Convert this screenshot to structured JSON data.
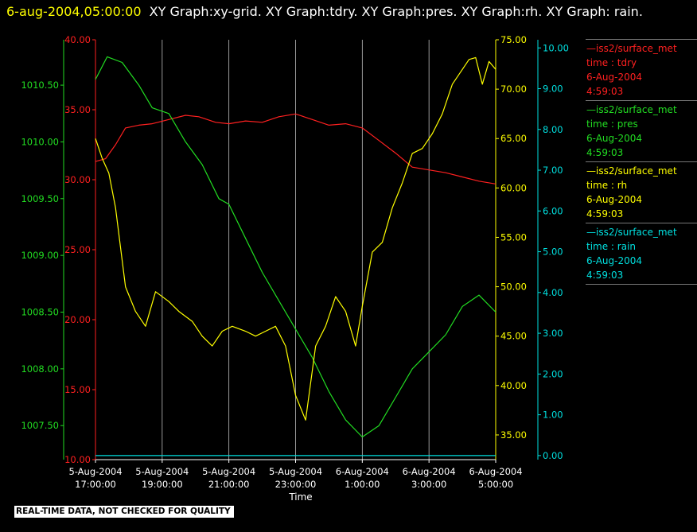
{
  "header": {
    "timestamp": "6-aug-2004,05:00:00",
    "graphs": "XY Graph:xy-grid.  XY Graph:tdry.  XY Graph:pres.  XY Graph:rh.  XY Graph: rain."
  },
  "footer": {
    "text": "REAL-TIME DATA, NOT CHECKED FOR QUALITY"
  },
  "colors": {
    "tdry": "#ff2020",
    "pres": "#22dd22",
    "rh": "#ffff00",
    "rain": "#00e0e0",
    "grid": "#ffffff",
    "background": "#000000"
  },
  "legend": [
    {
      "name": "—iss2/surface_met",
      "var": "time : tdry",
      "date": "6-Aug-2004",
      "time": "4:59:03",
      "color": "#ff2020"
    },
    {
      "name": "—iss2/surface_met",
      "var": "time : pres",
      "date": "6-Aug-2004",
      "time": "4:59:03",
      "color": "#22dd22"
    },
    {
      "name": "—iss2/surface_met",
      "var": "time : rh",
      "date": "6-Aug-2004",
      "time": "4:59:03",
      "color": "#ffff00"
    },
    {
      "name": "—iss2/surface_met",
      "var": "time : rain",
      "date": "6-Aug-2004",
      "time": "4:59:03",
      "color": "#00e0e0"
    }
  ],
  "chart_data": {
    "type": "line",
    "xlabel": "Time",
    "x_ticks": [
      {
        "x": 17,
        "line1": "5-Aug-2004",
        "line2": "17:00:00"
      },
      {
        "x": 19,
        "line1": "5-Aug-2004",
        "line2": "19:00:00"
      },
      {
        "x": 21,
        "line1": "5-Aug-2004",
        "line2": "21:00:00"
      },
      {
        "x": 23,
        "line1": "5-Aug-2004",
        "line2": "23:00:00"
      },
      {
        "x": 25,
        "line1": "6-Aug-2004",
        "line2": "1:00:00"
      },
      {
        "x": 27,
        "line1": "6-Aug-2004",
        "line2": "3:00:00"
      },
      {
        "x": 29,
        "line1": "6-Aug-2004",
        "line2": "5:00:00"
      }
    ],
    "xlim": [
      17,
      29
    ],
    "grid": "vertical",
    "axes": {
      "pres": {
        "side": "left-outer",
        "ylim": [
          1007.2,
          1010.9
        ],
        "ticks": [
          "1007.50",
          "1008.00",
          "1008.50",
          "1009.00",
          "1009.50",
          "1010.00",
          "1010.50"
        ],
        "color": "#22dd22"
      },
      "tdry": {
        "side": "left-inner",
        "ylim": [
          10,
          40
        ],
        "ticks": [
          "10.00",
          "15.00",
          "20.00",
          "25.00",
          "30.00",
          "35.00",
          "40.00"
        ],
        "color": "#ff2020"
      },
      "rh": {
        "side": "right-inner",
        "ylim": [
          32.5,
          75
        ],
        "ticks": [
          "35.00",
          "40.00",
          "45.00",
          "50.00",
          "55.00",
          "60.00",
          "65.00",
          "70.00",
          "75.00"
        ],
        "color": "#ffff00"
      },
      "rain": {
        "side": "right-outer",
        "ylim": [
          -0.1,
          10.2
        ],
        "ticks": [
          "0.00",
          "1.00",
          "2.00",
          "3.00",
          "4.00",
          "5.00",
          "6.00",
          "7.00",
          "8.00",
          "9.00",
          "10.00"
        ],
        "color": "#00e0e0"
      }
    },
    "series": [
      {
        "var": "tdry",
        "x": [
          17.0,
          17.3,
          17.6,
          17.9,
          18.3,
          18.7,
          19.2,
          19.7,
          20.1,
          20.6,
          21.0,
          21.5,
          22.0,
          22.5,
          23.0,
          23.5,
          24.0,
          24.5,
          25.0,
          25.5,
          26.0,
          26.5,
          27.0,
          27.5,
          28.0,
          28.5,
          29.0
        ],
        "y": [
          31.3,
          31.5,
          32.5,
          33.7,
          33.9,
          34.0,
          34.3,
          34.6,
          34.5,
          34.1,
          34.0,
          34.2,
          34.1,
          34.5,
          34.7,
          34.3,
          33.9,
          34.0,
          33.7,
          32.8,
          31.9,
          30.9,
          30.7,
          30.5,
          30.2,
          29.9,
          29.7
        ]
      },
      {
        "var": "pres",
        "x": [
          17.0,
          17.35,
          17.8,
          18.3,
          18.7,
          19.2,
          19.7,
          20.2,
          20.7,
          21.0,
          21.5,
          22.0,
          22.5,
          23.0,
          23.5,
          24.0,
          24.5,
          25.0,
          25.5,
          26.0,
          26.5,
          27.0,
          27.5,
          28.0,
          28.5,
          29.0
        ],
        "y": [
          1010.55,
          1010.75,
          1010.7,
          1010.5,
          1010.3,
          1010.25,
          1010.0,
          1009.8,
          1009.5,
          1009.45,
          1009.15,
          1008.85,
          1008.6,
          1008.35,
          1008.1,
          1007.8,
          1007.55,
          1007.4,
          1007.5,
          1007.75,
          1008.0,
          1008.15,
          1008.3,
          1008.55,
          1008.65,
          1008.5
        ]
      },
      {
        "var": "rh",
        "x": [
          17.0,
          17.2,
          17.4,
          17.6,
          17.9,
          18.2,
          18.5,
          18.8,
          19.2,
          19.5,
          19.9,
          20.2,
          20.5,
          20.8,
          21.1,
          21.5,
          21.8,
          22.1,
          22.4,
          22.7,
          23.0,
          23.3,
          23.6,
          23.9,
          24.2,
          24.5,
          24.8,
          25.0,
          25.3,
          25.6,
          25.9,
          26.2,
          26.5,
          26.8,
          27.1,
          27.4,
          27.7,
          28.0,
          28.2,
          28.4,
          28.6,
          28.8,
          29.0
        ],
        "y": [
          65.0,
          63.0,
          61.5,
          58.0,
          50.0,
          47.5,
          46.0,
          49.5,
          48.5,
          47.5,
          46.5,
          45.0,
          44.0,
          45.5,
          46.0,
          45.5,
          45.0,
          45.5,
          46.0,
          44.0,
          39.0,
          36.5,
          44.0,
          46.0,
          49.0,
          47.5,
          44.0,
          48.0,
          53.5,
          54.5,
          58.0,
          60.5,
          63.5,
          64.0,
          65.5,
          67.5,
          70.5,
          72.0,
          73.0,
          73.2,
          70.5,
          72.8,
          72.0
        ]
      },
      {
        "var": "rain",
        "x": [
          17.0,
          29.0
        ],
        "y": [
          0.0,
          0.0
        ]
      }
    ]
  }
}
